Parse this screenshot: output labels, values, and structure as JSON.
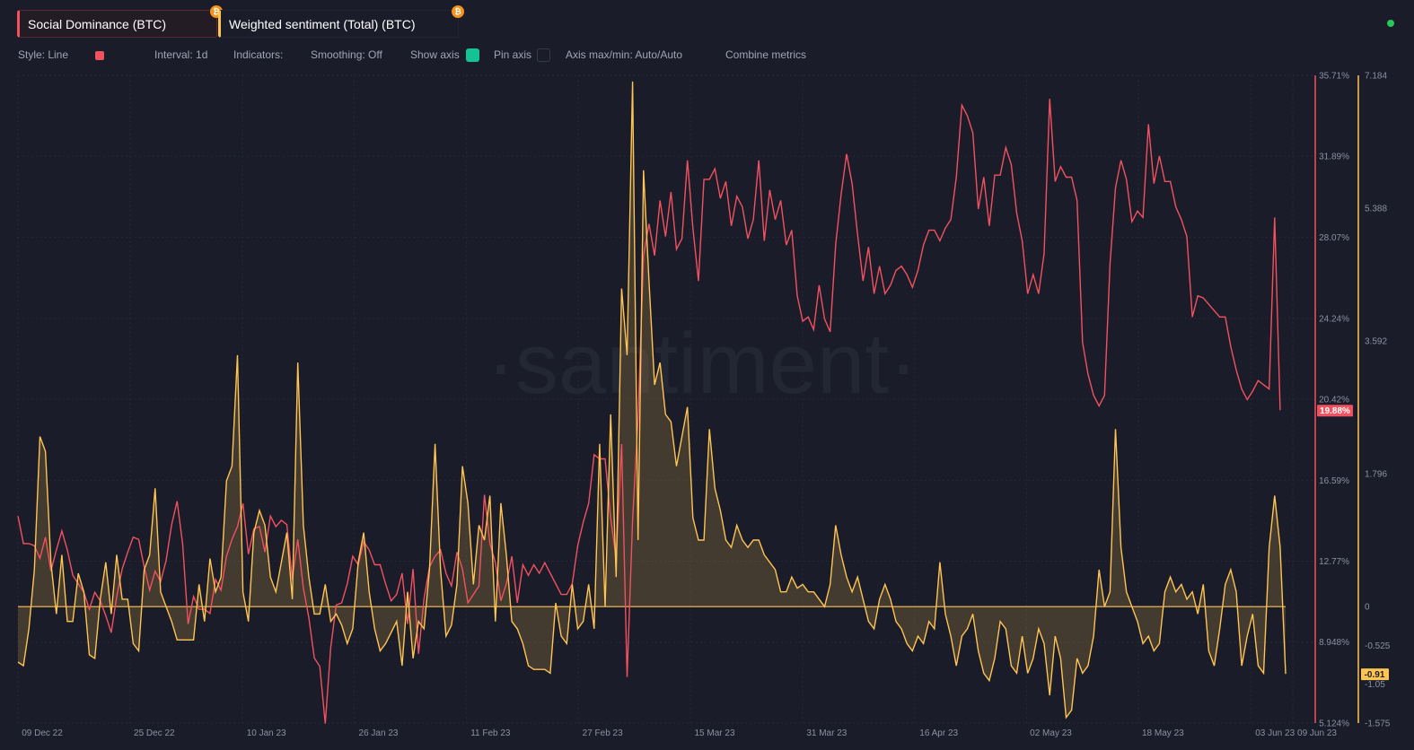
{
  "metrics": [
    {
      "label": "Social Dominance (BTC)",
      "color": "#f2515f",
      "badge": "₿"
    },
    {
      "label": "Weighted sentiment (Total) (BTC)",
      "color": "#ffc452",
      "badge": "₿"
    }
  ],
  "toolbar": {
    "style": "Style: Line",
    "interval": "Interval: 1d",
    "indicators": "Indicators:",
    "smoothing": "Smoothing: Off",
    "show_axis": "Show axis",
    "pin_axis": "Pin axis",
    "axis_maxmin": "Axis max/min: Auto/Auto",
    "combine": "Combine metrics"
  },
  "watermark": "·santiment·",
  "chart_data": {
    "type": "line",
    "x_ticks": [
      "09 Dec 22",
      "25 Dec 22",
      "10 Jan 23",
      "26 Jan 23",
      "11 Feb 23",
      "27 Feb 23",
      "15 Mar 23",
      "31 Mar 23",
      "16 Apr 23",
      "02 May 23",
      "18 May 23",
      "03 Jun 23",
      "09 Jun 23"
    ],
    "x_start": "2022-12-09",
    "x_end": "2023-06-09",
    "left_axis_ticks": [
      "35.71%",
      "31.89%",
      "28.07%",
      "24.24%",
      "20.42%",
      "16.59%",
      "12.77%",
      "8.948%",
      "5.124%"
    ],
    "right_axis_ticks": [
      "7.184",
      "5.388",
      "3.592",
      "1.796",
      "0",
      "-0.525",
      "-1.05",
      "-1.575"
    ],
    "series": [
      {
        "name": "Social Dominance (BTC)",
        "color": "#f2515f",
        "axis": "left",
        "unit": "%",
        "ylim": [
          5.124,
          35.71
        ],
        "last_value_label": "19.88%",
        "values": [
          14.9,
          13.6,
          13.6,
          13.5,
          12.9,
          13.9,
          12.3,
          13.3,
          14.2,
          13.3,
          12.1,
          11.7,
          11.3,
          10.5,
          11.3,
          10.9,
          10.2,
          9.4,
          11.1,
          12.4,
          13.2,
          13.9,
          13.8,
          12.5,
          11.4,
          12.3,
          11.8,
          12.8,
          14.5,
          15.6,
          13.6,
          9.8,
          11.1,
          10.5,
          10.5,
          10.3,
          11.9,
          11.4,
          13.0,
          13.8,
          14.4,
          15.5,
          13.1,
          14.3,
          14.4,
          13.2,
          14.9,
          14.4,
          14.7,
          14.5,
          11.9,
          13.8,
          11.5,
          10.1,
          8.2,
          7.8,
          5.1,
          8.7,
          10.7,
          10.8,
          11.7,
          13.0,
          12.6,
          13.7,
          13.3,
          12.6,
          12.6,
          11.7,
          10.9,
          11.2,
          12.2,
          9.8,
          12.4,
          8.4,
          11.0,
          12.5,
          13.0,
          13.3,
          12.2,
          11.6,
          13.2,
          12.4,
          10.8,
          11.2,
          11.6,
          15.9,
          13.6,
          12.7,
          10.9,
          11.7,
          13.0,
          10.8,
          12.6,
          12.1,
          12.6,
          12.2,
          12.7,
          12.2,
          11.7,
          11.2,
          11.2,
          11.7,
          13.5,
          14.6,
          15.5,
          17.8,
          17.6,
          17.6,
          14.8,
          12.9,
          18.3,
          7.3,
          14.7,
          19.5,
          27.2,
          28.7,
          27.2,
          29.8,
          28.1,
          30.2,
          27.5,
          28.0,
          31.7,
          28.5,
          26.0,
          30.8,
          30.8,
          31.3,
          29.9,
          30.7,
          28.6,
          30.0,
          29.5,
          28.0,
          28.9,
          31.7,
          27.9,
          30.3,
          28.9,
          29.8,
          27.7,
          28.4,
          25.3,
          24.1,
          24.3,
          23.7,
          25.8,
          24.2,
          23.6,
          27.7,
          30.1,
          32.0,
          30.6,
          28.2,
          26.0,
          27.6,
          25.4,
          26.7,
          25.4,
          25.8,
          26.5,
          26.7,
          26.3,
          25.7,
          26.5,
          27.7,
          28.4,
          28.4,
          27.9,
          28.5,
          28.9,
          30.9,
          34.3,
          33.8,
          33.0,
          29.4,
          30.9,
          28.6,
          31.0,
          31.0,
          32.3,
          31.5,
          29.2,
          27.9,
          25.4,
          26.3,
          25.4,
          27.3,
          34.6,
          30.7,
          31.4,
          30.9,
          30.9,
          29.8,
          23.1,
          21.6,
          20.6,
          20.1,
          20.6,
          26.8,
          30.4,
          31.7,
          30.8,
          28.8,
          29.3,
          29.0,
          33.4,
          30.6,
          31.9,
          30.7,
          30.7,
          29.5,
          28.9,
          28.1,
          24.3,
          25.3,
          25.2,
          24.9,
          24.6,
          24.3,
          24.3,
          22.9,
          21.8,
          20.9,
          20.4,
          20.8,
          21.3,
          21.1,
          20.9,
          29.0,
          19.9
        ]
      },
      {
        "name": "Weighted sentiment (Total) (BTC)",
        "color": "#ffc452",
        "axis": "right",
        "ylim": [
          -1.575,
          7.184
        ],
        "last_value_label": "-0.91",
        "values": [
          -0.75,
          -0.8,
          -0.3,
          0.5,
          2.3,
          2.1,
          0.6,
          -0.1,
          0.7,
          -0.2,
          -0.2,
          0.45,
          0.2,
          -0.65,
          -0.7,
          0.1,
          0.6,
          -0.1,
          0.7,
          0.1,
          0.1,
          -0.5,
          -0.6,
          0.5,
          0.7,
          1.6,
          0.2,
          0.0,
          -0.2,
          -0.45,
          -0.45,
          -0.45,
          -0.45,
          0.3,
          -0.2,
          0.65,
          0.2,
          0.4,
          1.7,
          1.9,
          3.4,
          0.2,
          -0.2,
          1.0,
          1.3,
          1.1,
          0.4,
          0.2,
          0.6,
          1.0,
          0.1,
          3.3,
          1.1,
          0.4,
          -0.1,
          -0.1,
          0.3,
          -0.2,
          -0.1,
          -0.25,
          -0.5,
          -0.3,
          0.6,
          1.0,
          0.2,
          -0.3,
          -0.6,
          -0.5,
          -0.35,
          -0.2,
          -0.8,
          0.2,
          -0.7,
          -0.2,
          -0.3,
          0.5,
          2.2,
          0.5,
          -0.4,
          -0.25,
          0.3,
          1.9,
          1.4,
          0.3,
          1.1,
          0.9,
          1.5,
          -0.2,
          1.4,
          0.7,
          -0.2,
          -0.3,
          -0.5,
          -0.8,
          -0.85,
          -0.85,
          -0.85,
          -0.9,
          0.05,
          -0.4,
          -0.5,
          0.3,
          -0.3,
          -0.2,
          0.3,
          -0.3,
          2.2,
          0.0,
          2.6,
          0.4,
          4.3,
          3.4,
          7.1,
          0.9,
          5.9,
          4.4,
          3.0,
          3.3,
          2.6,
          2.5,
          1.9,
          2.3,
          2.7,
          1.2,
          0.9,
          0.9,
          2.4,
          1.6,
          1.3,
          0.9,
          0.8,
          1.1,
          0.9,
          0.8,
          0.9,
          0.9,
          0.7,
          0.6,
          0.5,
          0.2,
          0.2,
          0.4,
          0.25,
          0.3,
          0.2,
          0.2,
          0.1,
          0.0,
          0.3,
          1.1,
          0.7,
          0.4,
          0.2,
          0.4,
          0.1,
          -0.2,
          -0.3,
          0.1,
          0.3,
          0.1,
          -0.2,
          -0.3,
          -0.5,
          -0.6,
          -0.4,
          -0.5,
          -0.2,
          -0.3,
          0.6,
          -0.1,
          -0.4,
          -0.8,
          -0.4,
          -0.3,
          -0.1,
          -0.6,
          -0.9,
          -1.0,
          -0.7,
          -0.2,
          -0.3,
          -0.8,
          -0.9,
          -0.4,
          -0.9,
          -0.7,
          -0.3,
          -0.5,
          -1.2,
          -0.4,
          -0.7,
          -1.5,
          -1.4,
          -0.7,
          -0.9,
          -0.8,
          -0.4,
          0.5,
          0.0,
          0.2,
          2.4,
          0.8,
          0.2,
          0.0,
          -0.2,
          -0.5,
          -0.4,
          -0.6,
          -0.5,
          0.2,
          0.4,
          0.2,
          0.3,
          0.1,
          0.2,
          -0.1,
          0.3,
          -0.6,
          -0.8,
          -0.3,
          0.3,
          0.5,
          0.2,
          -0.8,
          -0.4,
          -0.1,
          -0.8,
          -0.9,
          0.8,
          1.5,
          0.8,
          -0.91
        ]
      }
    ]
  }
}
